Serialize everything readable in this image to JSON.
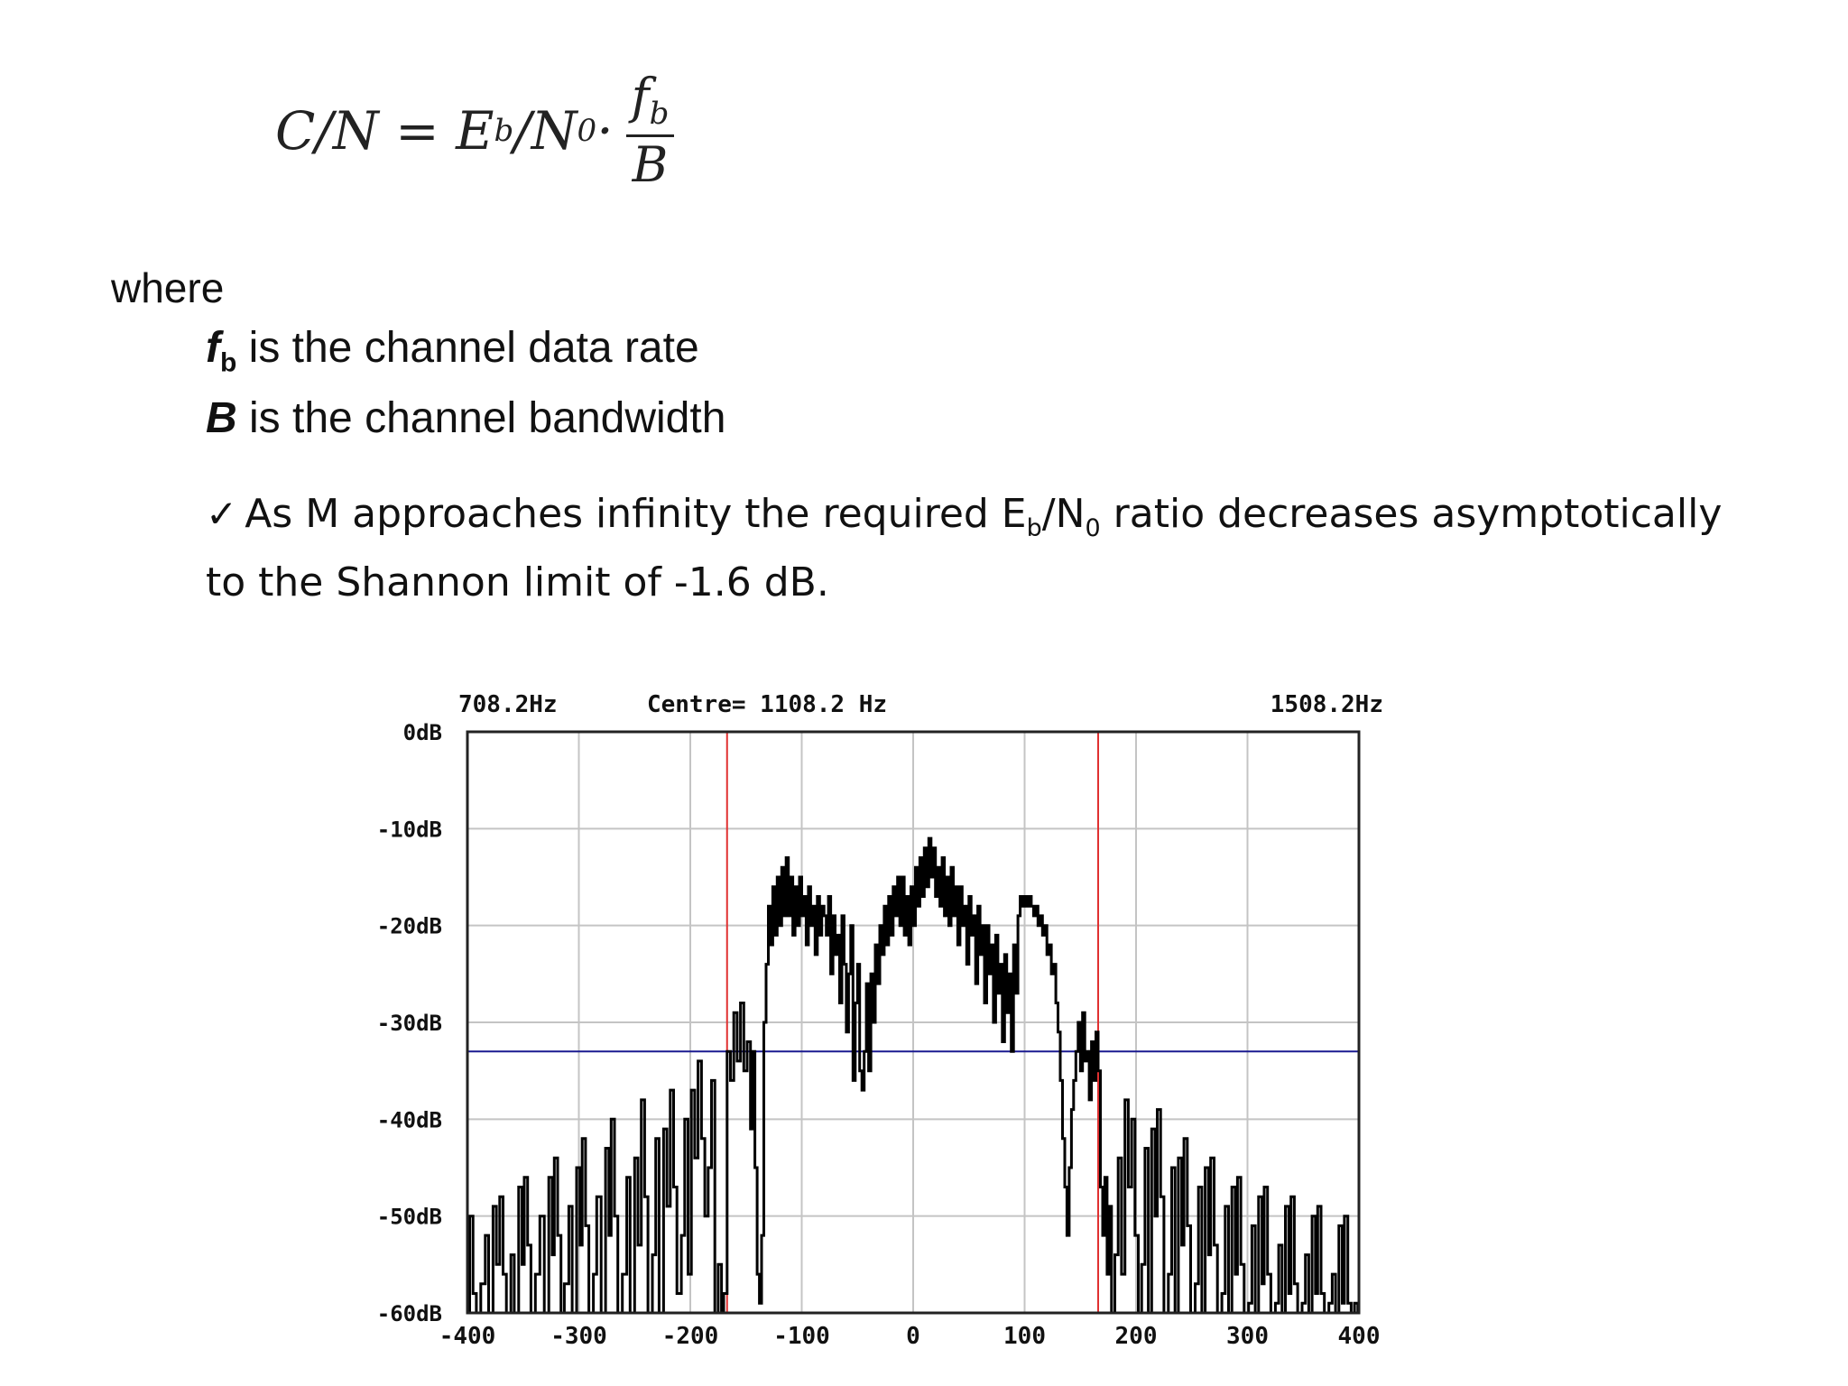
{
  "formula": {
    "lhs": "C/N = E",
    "lhs_sub": "b",
    "mid": "/N",
    "mid_sub": "0",
    "dot": " ·",
    "num": "f",
    "num_sub": "b",
    "den": "B"
  },
  "where": "where",
  "definitions": [
    {
      "symbol": "f",
      "sub": "b",
      "text": " is the channel data rate"
    },
    {
      "symbol": "B",
      "sub": "",
      "text": " is the channel bandwidth"
    }
  ],
  "note": {
    "check": "✓",
    "part1": "As M approaches infinity the required E",
    "sub1": "b",
    "part2": "/N",
    "sub2": "0",
    "part3": " ratio decreases asymptotically to the Shannon limit of -1.6 dB."
  },
  "chart_data": {
    "type": "line",
    "header": {
      "left": "708.2Hz",
      "center": "Centre= 1108.2 Hz",
      "right": "1508.2Hz"
    },
    "x_ticks": [
      -400,
      -300,
      -200,
      -100,
      0,
      100,
      200,
      300,
      400
    ],
    "y_ticks": [
      "0dB",
      "-10dB",
      "-20dB",
      "-30dB",
      "-40dB",
      "-50dB",
      "-60dB"
    ],
    "xlim": [
      -400,
      400
    ],
    "ylim": [
      -60,
      0
    ],
    "grid": true,
    "markers_x": [
      -167,
      166
    ],
    "threshold_db": -33,
    "colors": {
      "trace": "#000000",
      "markers": "#e03030",
      "threshold": "#1a1a90",
      "grid": "#c4c4c4"
    },
    "series": [
      {
        "values": [
          [
            -400,
            -60
          ],
          [
            -398,
            -50
          ],
          [
            -395,
            -58
          ],
          [
            -392,
            -60
          ],
          [
            -388,
            -57
          ],
          [
            -384,
            -52
          ],
          [
            -381,
            -60
          ],
          [
            -377,
            -49
          ],
          [
            -374,
            -55
          ],
          [
            -371,
            -48
          ],
          [
            -368,
            -56
          ],
          [
            -365,
            -60
          ],
          [
            -361,
            -54
          ],
          [
            -358,
            -60
          ],
          [
            -354,
            -47
          ],
          [
            -351,
            -55
          ],
          [
            -349,
            -46
          ],
          [
            -346,
            -53
          ],
          [
            -343,
            -60
          ],
          [
            -339,
            -56
          ],
          [
            -335,
            -50
          ],
          [
            -331,
            -60
          ],
          [
            -327,
            -46
          ],
          [
            -324,
            -54
          ],
          [
            -322,
            -44
          ],
          [
            -319,
            -52
          ],
          [
            -316,
            -60
          ],
          [
            -313,
            -57
          ],
          [
            -309,
            -49
          ],
          [
            -306,
            -60
          ],
          [
            -302,
            -45
          ],
          [
            -299,
            -53
          ],
          [
            -297,
            -42
          ],
          [
            -294,
            -51
          ],
          [
            -291,
            -60
          ],
          [
            -287,
            -56
          ],
          [
            -284,
            -48
          ],
          [
            -280,
            -60
          ],
          [
            -276,
            -43
          ],
          [
            -273,
            -52
          ],
          [
            -271,
            -40
          ],
          [
            -268,
            -50
          ],
          [
            -265,
            -60
          ],
          [
            -261,
            -56
          ],
          [
            -257,
            -46
          ],
          [
            -254,
            -60
          ],
          [
            -250,
            -44
          ],
          [
            -247,
            -53
          ],
          [
            -244,
            -38
          ],
          [
            -241,
            -48
          ],
          [
            -238,
            -60
          ],
          [
            -234,
            -54
          ],
          [
            -231,
            -42
          ],
          [
            -228,
            -60
          ],
          [
            -224,
            -41
          ],
          [
            -221,
            -49
          ],
          [
            -218,
            -37
          ],
          [
            -215,
            -47
          ],
          [
            -212,
            -58
          ],
          [
            -208,
            -52
          ],
          [
            -205,
            -40
          ],
          [
            -202,
            -56
          ],
          [
            -199,
            -37
          ],
          [
            -196,
            -44
          ],
          [
            -193,
            -34
          ],
          [
            -190,
            -42
          ],
          [
            -187,
            -50
          ],
          [
            -184,
            -45
          ],
          [
            -181,
            -36
          ],
          [
            -178,
            -60
          ],
          [
            -175,
            -55
          ],
          [
            -172,
            -60
          ],
          [
            -170,
            -58
          ],
          [
            -167,
            -33
          ],
          [
            -164,
            -36
          ],
          [
            -161,
            -29
          ],
          [
            -158,
            -34
          ],
          [
            -155,
            -28
          ],
          [
            -152,
            -35
          ],
          [
            -149,
            -32
          ],
          [
            -146,
            -41
          ],
          [
            -144,
            -33
          ],
          [
            -142,
            -45
          ],
          [
            -140,
            -56
          ],
          [
            -138,
            -59
          ],
          [
            -136,
            -52
          ],
          [
            -134,
            -30
          ],
          [
            -132,
            -24
          ],
          [
            -130,
            -18
          ],
          [
            -128,
            -22
          ],
          [
            -126,
            -16
          ],
          [
            -124,
            -21
          ],
          [
            -122,
            -15
          ],
          [
            -120,
            -20
          ],
          [
            -118,
            -14
          ],
          [
            -116,
            -19
          ],
          [
            -114,
            -13
          ],
          [
            -112,
            -19
          ],
          [
            -110,
            -15
          ],
          [
            -108,
            -21
          ],
          [
            -106,
            -16
          ],
          [
            -104,
            -20
          ],
          [
            -102,
            -15
          ],
          [
            -100,
            -19
          ],
          [
            -98,
            -17
          ],
          [
            -96,
            -22
          ],
          [
            -94,
            -16
          ],
          [
            -92,
            -20
          ],
          [
            -90,
            -18
          ],
          [
            -88,
            -23
          ],
          [
            -86,
            -17
          ],
          [
            -84,
            -21
          ],
          [
            -82,
            -18
          ],
          [
            -80,
            -19
          ],
          [
            -78,
            -21
          ],
          [
            -76,
            -17
          ],
          [
            -74,
            -25
          ],
          [
            -72,
            -19
          ],
          [
            -70,
            -23
          ],
          [
            -68,
            -21
          ],
          [
            -66,
            -28
          ],
          [
            -64,
            -19
          ],
          [
            -62,
            -24
          ],
          [
            -60,
            -31
          ],
          [
            -58,
            -25
          ],
          [
            -56,
            -20
          ],
          [
            -54,
            -36
          ],
          [
            -52,
            -28
          ],
          [
            -50,
            -24
          ],
          [
            -48,
            -35
          ],
          [
            -46,
            -37
          ],
          [
            -44,
            -33
          ],
          [
            -42,
            -26
          ],
          [
            -40,
            -35
          ],
          [
            -38,
            -25
          ],
          [
            -36,
            -30
          ],
          [
            -34,
            -22
          ],
          [
            -32,
            -26
          ],
          [
            -30,
            -20
          ],
          [
            -28,
            -23
          ],
          [
            -26,
            -18
          ],
          [
            -24,
            -22
          ],
          [
            -22,
            -17
          ],
          [
            -20,
            -21
          ],
          [
            -18,
            -16
          ],
          [
            -16,
            -19
          ],
          [
            -14,
            -15
          ],
          [
            -12,
            -20
          ],
          [
            -10,
            -15
          ],
          [
            -8,
            -21
          ],
          [
            -6,
            -17
          ],
          [
            -4,
            -22
          ],
          [
            -2,
            -16
          ],
          [
            0,
            -20
          ],
          [
            2,
            -14
          ],
          [
            4,
            -18
          ],
          [
            6,
            -13
          ],
          [
            8,
            -17
          ],
          [
            10,
            -12
          ],
          [
            12,
            -16
          ],
          [
            14,
            -11
          ],
          [
            16,
            -15
          ],
          [
            18,
            -12
          ],
          [
            20,
            -17
          ],
          [
            22,
            -14
          ],
          [
            24,
            -18
          ],
          [
            26,
            -13
          ],
          [
            28,
            -19
          ],
          [
            30,
            -15
          ],
          [
            32,
            -20
          ],
          [
            34,
            -14
          ],
          [
            36,
            -19
          ],
          [
            38,
            -16
          ],
          [
            40,
            -22
          ],
          [
            42,
            -16
          ],
          [
            44,
            -20
          ],
          [
            46,
            -18
          ],
          [
            48,
            -24
          ],
          [
            50,
            -17
          ],
          [
            52,
            -21
          ],
          [
            54,
            -19
          ],
          [
            56,
            -26
          ],
          [
            58,
            -18
          ],
          [
            60,
            -23
          ],
          [
            62,
            -20
          ],
          [
            64,
            -28
          ],
          [
            66,
            -20
          ],
          [
            68,
            -25
          ],
          [
            70,
            -22
          ],
          [
            72,
            -30
          ],
          [
            74,
            -21
          ],
          [
            76,
            -27
          ],
          [
            78,
            -24
          ],
          [
            80,
            -32
          ],
          [
            82,
            -23
          ],
          [
            84,
            -29
          ],
          [
            86,
            -25
          ],
          [
            88,
            -33
          ],
          [
            90,
            -22
          ],
          [
            92,
            -27
          ],
          [
            94,
            -19
          ],
          [
            96,
            -17
          ],
          [
            98,
            -18
          ],
          [
            100,
            -17
          ],
          [
            102,
            -18
          ],
          [
            104,
            -17
          ],
          [
            106,
            -18
          ],
          [
            108,
            -19
          ],
          [
            110,
            -18
          ],
          [
            112,
            -20
          ],
          [
            114,
            -19
          ],
          [
            116,
            -21
          ],
          [
            118,
            -20
          ],
          [
            120,
            -23
          ],
          [
            122,
            -22
          ],
          [
            124,
            -25
          ],
          [
            126,
            -24
          ],
          [
            128,
            -28
          ],
          [
            130,
            -31
          ],
          [
            132,
            -36
          ],
          [
            134,
            -42
          ],
          [
            136,
            -47
          ],
          [
            138,
            -52
          ],
          [
            140,
            -45
          ],
          [
            142,
            -39
          ],
          [
            144,
            -36
          ],
          [
            146,
            -33
          ],
          [
            148,
            -30
          ],
          [
            150,
            -35
          ],
          [
            152,
            -29
          ],
          [
            154,
            -34
          ],
          [
            156,
            -33
          ],
          [
            158,
            -38
          ],
          [
            160,
            -32
          ],
          [
            162,
            -36
          ],
          [
            164,
            -31
          ],
          [
            166,
            -35
          ],
          [
            168,
            -47
          ],
          [
            170,
            -52
          ],
          [
            172,
            -46
          ],
          [
            174,
            -56
          ],
          [
            176,
            -49
          ],
          [
            178,
            -60
          ],
          [
            181,
            -54
          ],
          [
            184,
            -44
          ],
          [
            187,
            -56
          ],
          [
            190,
            -38
          ],
          [
            193,
            -47
          ],
          [
            196,
            -40
          ],
          [
            199,
            -52
          ],
          [
            202,
            -60
          ],
          [
            205,
            -55
          ],
          [
            208,
            -43
          ],
          [
            211,
            -60
          ],
          [
            214,
            -41
          ],
          [
            217,
            -50
          ],
          [
            219,
            -39
          ],
          [
            222,
            -48
          ],
          [
            225,
            -60
          ],
          [
            229,
            -56
          ],
          [
            232,
            -45
          ],
          [
            235,
            -60
          ],
          [
            238,
            -44
          ],
          [
            241,
            -53
          ],
          [
            243,
            -42
          ],
          [
            246,
            -51
          ],
          [
            249,
            -60
          ],
          [
            253,
            -57
          ],
          [
            256,
            -47
          ],
          [
            259,
            -60
          ],
          [
            262,
            -45
          ],
          [
            265,
            -54
          ],
          [
            267,
            -44
          ],
          [
            270,
            -53
          ],
          [
            273,
            -60
          ],
          [
            277,
            -58
          ],
          [
            280,
            -49
          ],
          [
            283,
            -60
          ],
          [
            286,
            -47
          ],
          [
            289,
            -56
          ],
          [
            291,
            -46
          ],
          [
            294,
            -55
          ],
          [
            297,
            -60
          ],
          [
            301,
            -59
          ],
          [
            304,
            -51
          ],
          [
            307,
            -60
          ],
          [
            310,
            -48
          ],
          [
            313,
            -57
          ],
          [
            315,
            -47
          ],
          [
            318,
            -56
          ],
          [
            321,
            -60
          ],
          [
            325,
            -59
          ],
          [
            328,
            -53
          ],
          [
            331,
            -60
          ],
          [
            334,
            -49
          ],
          [
            337,
            -58
          ],
          [
            339,
            -48
          ],
          [
            342,
            -57
          ],
          [
            345,
            -60
          ],
          [
            349,
            -59
          ],
          [
            352,
            -54
          ],
          [
            355,
            -60
          ],
          [
            358,
            -50
          ],
          [
            361,
            -58
          ],
          [
            363,
            -49
          ],
          [
            366,
            -58
          ],
          [
            369,
            -60
          ],
          [
            373,
            -59
          ],
          [
            376,
            -56
          ],
          [
            379,
            -60
          ],
          [
            382,
            -51
          ],
          [
            385,
            -59
          ],
          [
            387,
            -50
          ],
          [
            390,
            -59
          ],
          [
            393,
            -60
          ],
          [
            396,
            -59
          ],
          [
            399,
            -60
          ]
        ]
      }
    ]
  }
}
